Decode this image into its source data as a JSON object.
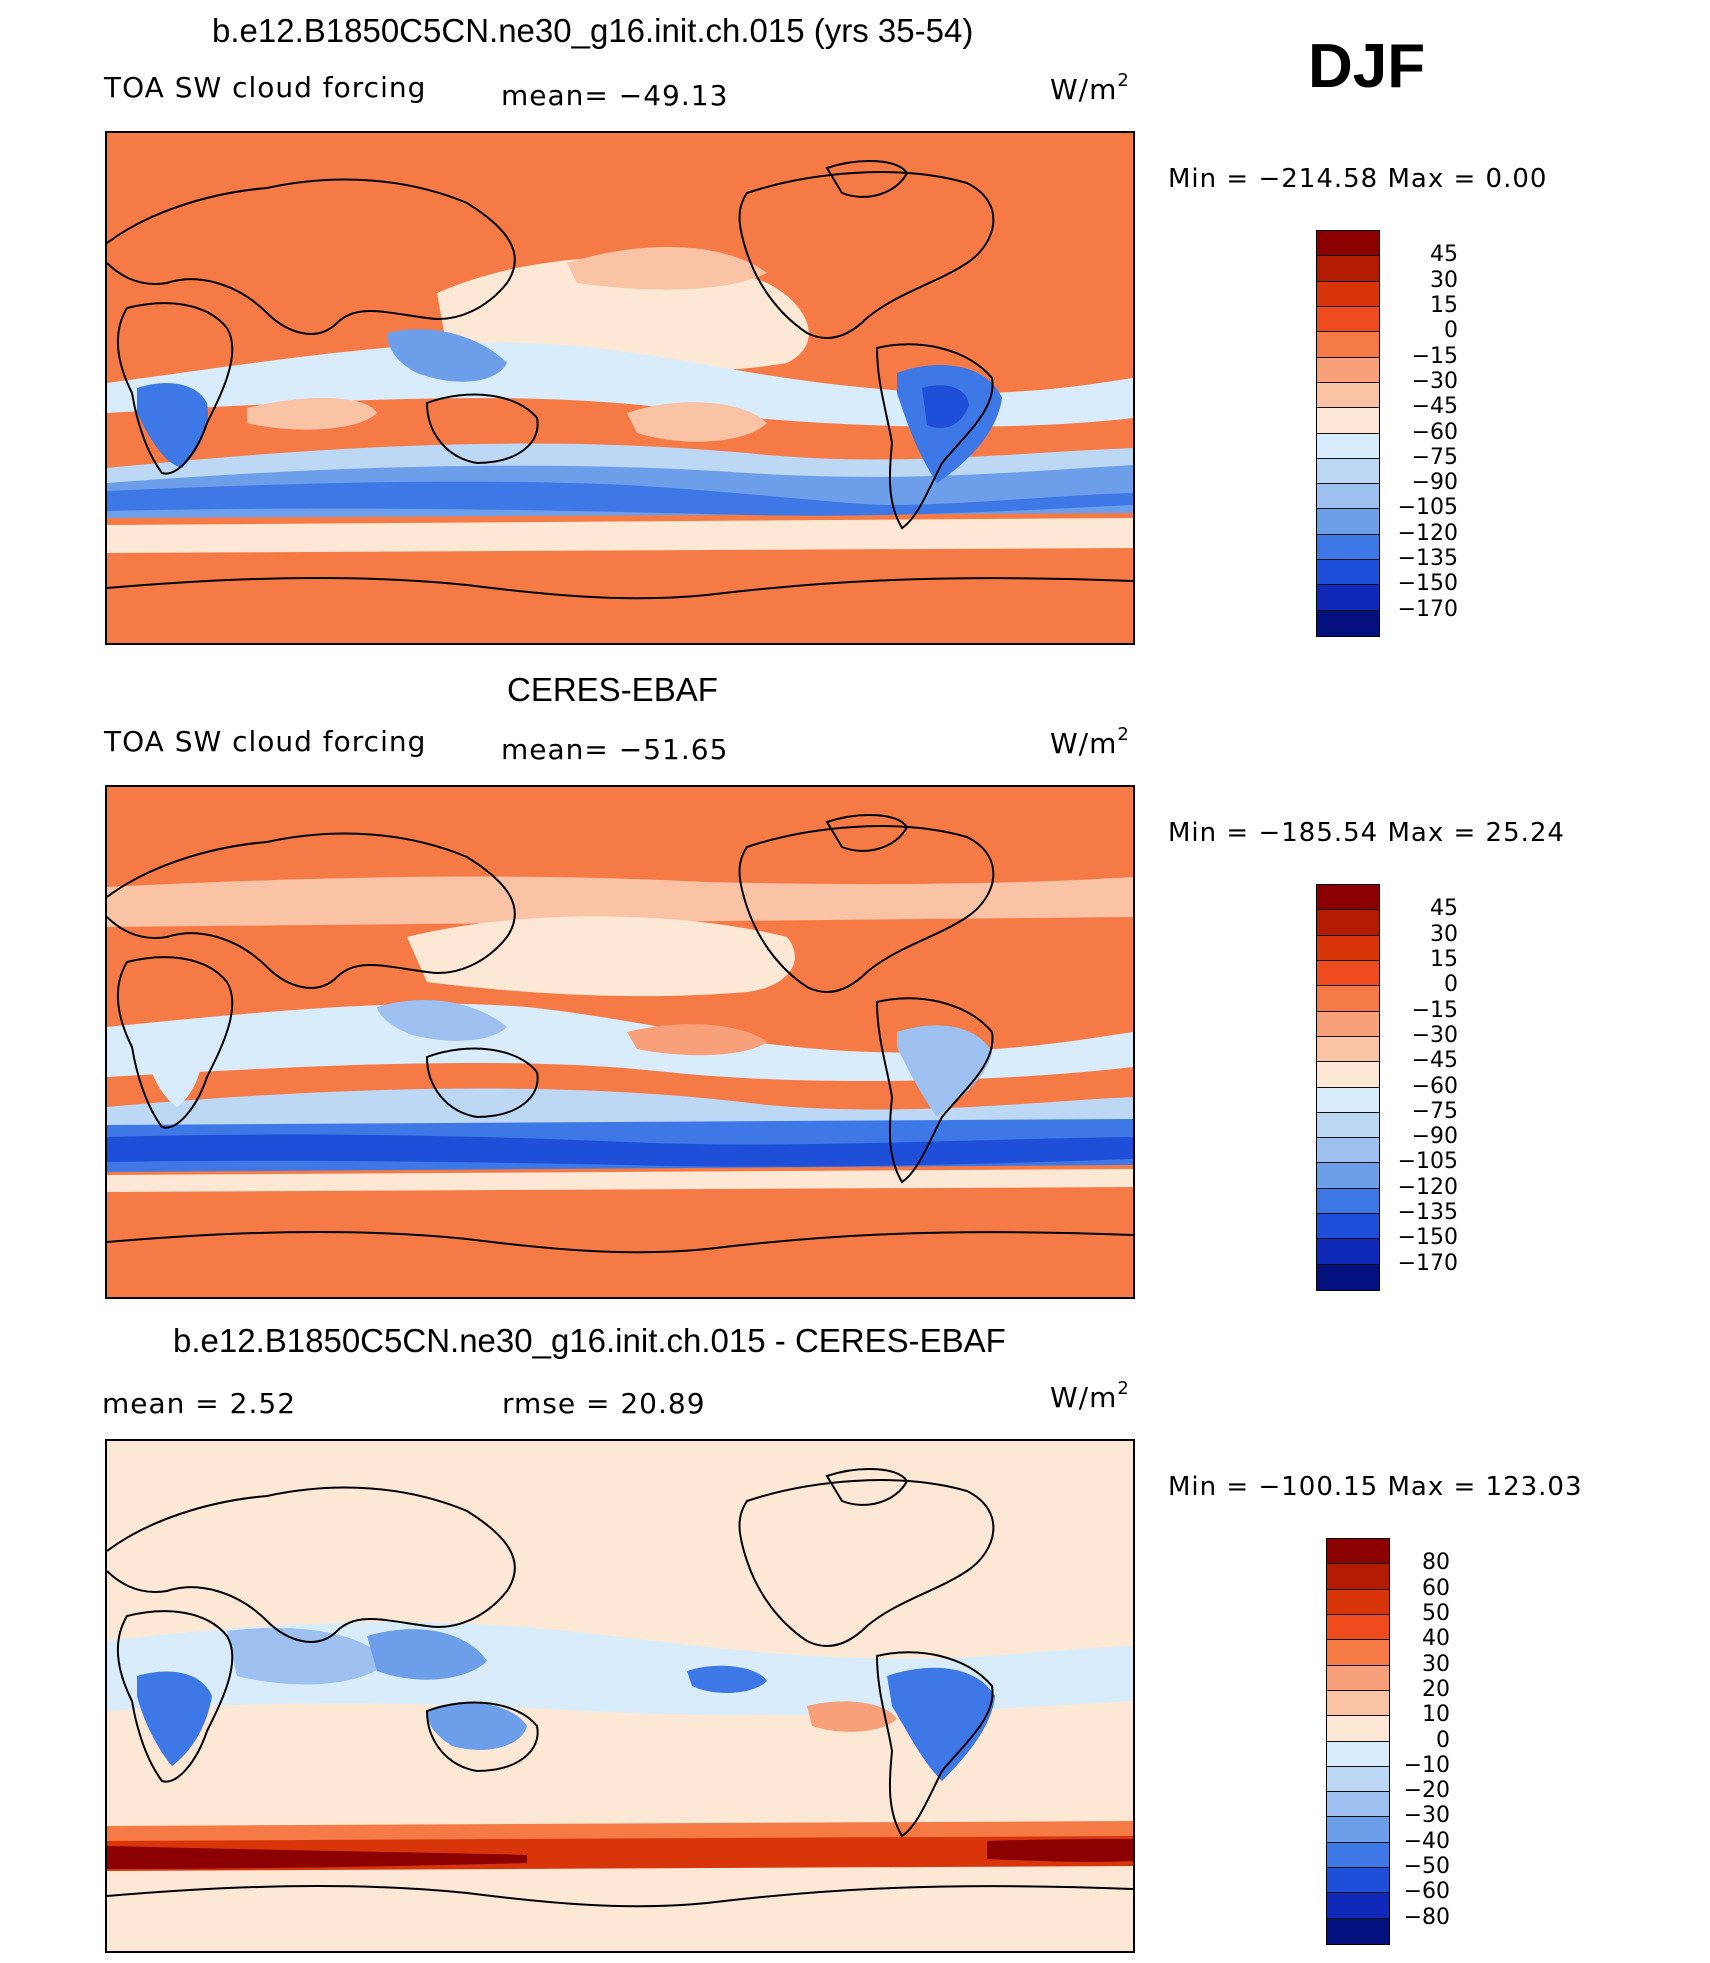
{
  "season": "DJF",
  "panels": [
    {
      "title": "b.e12.B1850C5CN.ne30_g16.init.ch.015 (yrs 35-54)",
      "field": "TOA SW cloud forcing",
      "stat1": "mean=  −49.13",
      "stat2": "",
      "units_base": "W/m",
      "units_exp": "2",
      "minmax": "Min  =  −214.58  Max  =     0.00",
      "levels": [
        "45",
        "30",
        "15",
        "0",
        "−15",
        "−30",
        "−45",
        "−60",
        "−75",
        "−90",
        "−105",
        "−120",
        "−135",
        "−150",
        "−170"
      ],
      "colors": [
        "#8b0000",
        "#b31b00",
        "#d8350a",
        "#f04a1f",
        "#f57a45",
        "#f7a07a",
        "#fbc3a6",
        "#fde8d6",
        "#d9ecfb",
        "#bcd8f5",
        "#9ec0f0",
        "#6c9eea",
        "#3e78e6",
        "#1f4ed9",
        "#1129b8",
        "#05107f"
      ],
      "map": {
        "base": "#f57a45"
      }
    },
    {
      "title": "CERES-EBAF",
      "field": "TOA SW cloud forcing",
      "stat1": "mean=  −51.65",
      "stat2": "",
      "units_base": "W/m",
      "units_exp": "2",
      "minmax": "Min  =  −185.54  Max  =    25.24",
      "levels": [
        "45",
        "30",
        "15",
        "0",
        "−15",
        "−30",
        "−45",
        "−60",
        "−75",
        "−90",
        "−105",
        "−120",
        "−135",
        "−150",
        "−170"
      ],
      "colors": [
        "#8b0000",
        "#b31b00",
        "#d8350a",
        "#f04a1f",
        "#f57a45",
        "#f7a07a",
        "#fbc3a6",
        "#fde8d6",
        "#d9ecfb",
        "#bcd8f5",
        "#9ec0f0",
        "#6c9eea",
        "#3e78e6",
        "#1f4ed9",
        "#1129b8",
        "#05107f"
      ],
      "map": {
        "base": "#f57a45"
      }
    },
    {
      "title": "b.e12.B1850C5CN.ne30_g16.init.ch.015 - CERES-EBAF",
      "field": "",
      "stat1": "mean =     2.52",
      "stat2": "rmse  =   20.89",
      "units_base": "W/m",
      "units_exp": "2",
      "minmax": "Min  =  −100.15  Max  =  123.03",
      "levels": [
        "80",
        "60",
        "50",
        "40",
        "30",
        "20",
        "10",
        "0",
        "−10",
        "−20",
        "−30",
        "−40",
        "−50",
        "−60",
        "−80"
      ],
      "colors": [
        "#8b0000",
        "#b31b00",
        "#d8350a",
        "#f04a1f",
        "#f57a45",
        "#f7a07a",
        "#fbc3a6",
        "#fde8d6",
        "#d9ecfb",
        "#bcd8f5",
        "#9ec0f0",
        "#6c9eea",
        "#3e78e6",
        "#1f4ed9",
        "#1129b8",
        "#05107f"
      ],
      "map": {
        "base": "#fde8d6"
      }
    }
  ]
}
